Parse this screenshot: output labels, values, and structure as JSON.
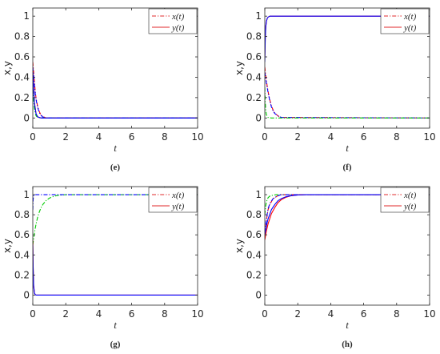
{
  "chart_data": [
    {
      "type": "line",
      "caption": "(e)",
      "xlabel": "t",
      "ylabel": "x,y",
      "xlim": [
        0,
        10
      ],
      "ylim": [
        -0.1,
        1.08
      ],
      "x_ticks": [
        "0",
        "2",
        "4",
        "6",
        "8",
        "10"
      ],
      "y_ticks": [
        "0",
        "0.2",
        "0.4",
        "0.6",
        "0.8",
        "1"
      ],
      "legend": [
        {
          "label": "x(t)",
          "color": "#e0292b",
          "dash": "dashdot"
        },
        {
          "label": "y(t)",
          "color": "#e0292b",
          "dash": "solid"
        }
      ],
      "series": [
        {
          "color": "#ff0000",
          "dash": "dashdot",
          "x": [
            0,
            0.05,
            0.1,
            0.15,
            0.2,
            0.3,
            0.4,
            0.5,
            0.6,
            0.8,
            10
          ],
          "y": [
            0.55,
            0.45,
            0.35,
            0.26,
            0.19,
            0.11,
            0.06,
            0.03,
            0.015,
            0,
            0
          ]
        },
        {
          "color": "#ff0000",
          "dash": "solid",
          "x": [
            0,
            0.05,
            0.1,
            0.2,
            0.3,
            0.5,
            10
          ],
          "y": [
            0.5,
            0.3,
            0.15,
            0.04,
            0.01,
            0,
            0
          ]
        },
        {
          "color": "#00cc00",
          "dash": "dashdot",
          "x": [
            0,
            0.05,
            0.1,
            0.15,
            0.2,
            0.3,
            0.5,
            10
          ],
          "y": [
            0.28,
            0.17,
            0.09,
            0.05,
            0.02,
            0.005,
            0,
            0
          ]
        },
        {
          "color": "#0000ff",
          "dash": "dashdot",
          "x": [
            0,
            0.05,
            0.1,
            0.15,
            0.2,
            0.3,
            0.4,
            0.5,
            0.6,
            0.8,
            10
          ],
          "y": [
            0.5,
            0.42,
            0.32,
            0.24,
            0.18,
            0.1,
            0.05,
            0.025,
            0.01,
            0,
            0
          ]
        },
        {
          "color": "#0000ff",
          "dash": "solid",
          "x": [
            0,
            0.05,
            0.1,
            0.2,
            0.3,
            0.5,
            10
          ],
          "y": [
            0.45,
            0.27,
            0.14,
            0.04,
            0.01,
            0,
            0
          ]
        }
      ]
    },
    {
      "type": "line",
      "caption": "(f)",
      "xlabel": "t",
      "ylabel": "x,y",
      "xlim": [
        0,
        10
      ],
      "ylim": [
        -0.1,
        1.08
      ],
      "x_ticks": [
        "0",
        "2",
        "4",
        "6",
        "8",
        "10"
      ],
      "y_ticks": [
        "0",
        "0.2",
        "0.4",
        "0.6",
        "0.8",
        "1"
      ],
      "legend": [
        {
          "label": "x(t)",
          "color": "#e0292b",
          "dash": "dashdot"
        },
        {
          "label": "y(t)",
          "color": "#e0292b",
          "dash": "solid"
        }
      ],
      "series": [
        {
          "color": "#ff0000",
          "dash": "solid",
          "x": [
            0,
            0.03,
            0.06,
            0.1,
            0.15,
            0.2,
            0.3,
            10
          ],
          "y": [
            0.6,
            0.8,
            0.9,
            0.95,
            0.98,
            0.99,
            1.0,
            1.0
          ]
        },
        {
          "color": "#0000ff",
          "dash": "solid",
          "x": [
            0,
            0.03,
            0.06,
            0.1,
            0.15,
            0.2,
            0.3,
            10
          ],
          "y": [
            0.55,
            0.78,
            0.9,
            0.95,
            0.98,
            0.99,
            1.0,
            1.0
          ]
        },
        {
          "color": "#ff0000",
          "dash": "dashdot",
          "x": [
            0,
            0.1,
            0.2,
            0.3,
            0.4,
            0.5,
            0.6,
            0.8,
            1.0,
            10
          ],
          "y": [
            0.5,
            0.36,
            0.26,
            0.18,
            0.12,
            0.08,
            0.05,
            0.02,
            0.005,
            0
          ]
        },
        {
          "color": "#0000ff",
          "dash": "dashdot",
          "x": [
            0,
            0.1,
            0.2,
            0.3,
            0.4,
            0.5,
            0.6,
            0.8,
            1.0,
            10
          ],
          "y": [
            0.45,
            0.34,
            0.25,
            0.17,
            0.11,
            0.07,
            0.045,
            0.02,
            0.005,
            0
          ]
        },
        {
          "color": "#00cc00",
          "dash": "dashdot",
          "x": [
            0,
            0.03,
            0.06,
            0.1,
            0.2,
            0.4,
            10
          ],
          "y": [
            0.3,
            0.15,
            0.07,
            0.03,
            0.005,
            0,
            0
          ]
        }
      ]
    },
    {
      "type": "line",
      "caption": "(g)",
      "xlabel": "t",
      "ylabel": "x,y",
      "xlim": [
        0,
        10
      ],
      "ylim": [
        -0.1,
        1.08
      ],
      "x_ticks": [
        "0",
        "2",
        "4",
        "6",
        "8",
        "10"
      ],
      "y_ticks": [
        "0",
        "0.2",
        "0.4",
        "0.6",
        "0.8",
        "1"
      ],
      "legend": [
        {
          "label": "x(t)",
          "color": "#e0292b",
          "dash": "dashdot"
        },
        {
          "label": "y(t)",
          "color": "#e0292b",
          "dash": "solid"
        }
      ],
      "series": [
        {
          "color": "#00cc00",
          "dash": "dashdot",
          "x": [
            0,
            0.1,
            0.2,
            0.3,
            0.4,
            0.5,
            0.6,
            0.8,
            1.0,
            1.3,
            1.6,
            2.0,
            10
          ],
          "y": [
            0.5,
            0.62,
            0.71,
            0.78,
            0.83,
            0.87,
            0.9,
            0.94,
            0.965,
            0.985,
            0.995,
            1.0,
            1.0
          ]
        },
        {
          "color": "#0000ff",
          "dash": "dashdot",
          "x": [
            0,
            0.02,
            0.05,
            0.1,
            10
          ],
          "y": [
            0.85,
            0.95,
            0.99,
            1.0,
            1.0
          ]
        },
        {
          "color": "#ff0000",
          "dash": "solid",
          "x": [
            0,
            0.02,
            0.05,
            0.1,
            0.15,
            0.2,
            10
          ],
          "y": [
            0.55,
            0.3,
            0.1,
            0.02,
            0.005,
            0,
            0
          ]
        },
        {
          "color": "#0000ff",
          "dash": "solid",
          "x": [
            0,
            0.02,
            0.05,
            0.1,
            0.15,
            0.2,
            10
          ],
          "y": [
            0.5,
            0.28,
            0.09,
            0.02,
            0.005,
            0,
            0
          ]
        }
      ]
    },
    {
      "type": "line",
      "caption": "(h)",
      "xlabel": "t",
      "ylabel": "x,y",
      "xlim": [
        0,
        10
      ],
      "ylim": [
        -0.1,
        1.08
      ],
      "x_ticks": [
        "0",
        "2",
        "4",
        "6",
        "8",
        "10"
      ],
      "y_ticks": [
        "0",
        "0.2",
        "0.4",
        "0.6",
        "0.8",
        "1"
      ],
      "legend": [
        {
          "label": "x(t)",
          "color": "#e0292b",
          "dash": "dashdot"
        },
        {
          "label": "y(t)",
          "color": "#e0292b",
          "dash": "solid"
        }
      ],
      "series": [
        {
          "color": "#00cc00",
          "dash": "dashdot",
          "x": [
            0,
            0.05,
            0.1,
            0.2,
            0.3,
            0.5,
            0.7,
            1.0,
            10
          ],
          "y": [
            0.8,
            0.88,
            0.93,
            0.97,
            0.985,
            0.995,
            1.0,
            1.0,
            1.0
          ]
        },
        {
          "color": "#ff0000",
          "dash": "dashdot",
          "x": [
            0,
            0.1,
            0.2,
            0.3,
            0.5,
            0.8,
            1.0,
            10
          ],
          "y": [
            0.6,
            0.75,
            0.85,
            0.9,
            0.96,
            0.99,
            1.0,
            1.0
          ]
        },
        {
          "color": "#0000ff",
          "dash": "dashdot",
          "x": [
            0,
            0.1,
            0.2,
            0.3,
            0.5,
            0.8,
            1.0,
            10
          ],
          "y": [
            0.62,
            0.76,
            0.86,
            0.91,
            0.96,
            0.99,
            1.0,
            1.0
          ]
        },
        {
          "color": "#ff0000",
          "dash": "solid",
          "x": [
            0,
            0.1,
            0.2,
            0.4,
            0.6,
            0.8,
            1.0,
            1.3,
            1.6,
            2.0,
            2.5,
            10
          ],
          "y": [
            0.55,
            0.64,
            0.71,
            0.81,
            0.87,
            0.92,
            0.95,
            0.975,
            0.99,
            0.997,
            1.0,
            1.0
          ]
        },
        {
          "color": "#0000ff",
          "dash": "solid",
          "x": [
            0,
            0.1,
            0.2,
            0.4,
            0.6,
            0.8,
            1.0,
            1.3,
            1.6,
            2.0,
            2.5,
            10
          ],
          "y": [
            0.6,
            0.69,
            0.76,
            0.85,
            0.9,
            0.94,
            0.96,
            0.98,
            0.99,
            0.997,
            1.0,
            1.0
          ]
        }
      ]
    }
  ]
}
